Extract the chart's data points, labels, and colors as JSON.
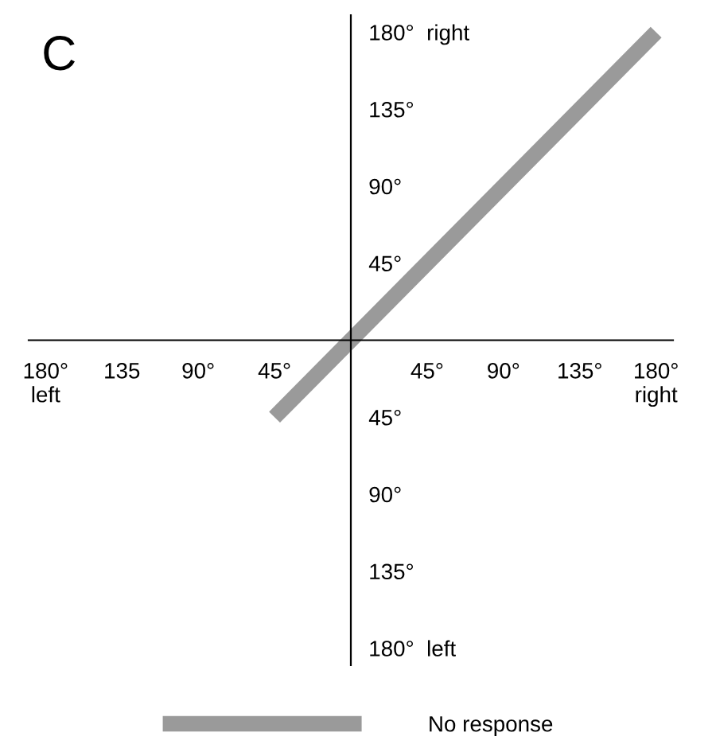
{
  "chart_data": {
    "type": "line",
    "title": "C",
    "x": [
      -45,
      180
    ],
    "series": [
      {
        "name": "No response",
        "color": "#9a9a9a",
        "values": [
          -45,
          180
        ]
      }
    ],
    "xlim": [
      -190,
      190
    ],
    "ylim": [
      -190,
      190
    ],
    "xticks": [
      {
        "value": -180,
        "label": "180°\nleft"
      },
      {
        "value": -135,
        "label": "135"
      },
      {
        "value": -90,
        "label": "90°"
      },
      {
        "value": -45,
        "label": "45°"
      },
      {
        "value": 45,
        "label": "45°"
      },
      {
        "value": 90,
        "label": "90°"
      },
      {
        "value": 135,
        "label": "135°"
      },
      {
        "value": 180,
        "label": "180°\nright"
      }
    ],
    "yticks": [
      {
        "value": -180,
        "label": "180°  left"
      },
      {
        "value": -135,
        "label": "135°"
      },
      {
        "value": -90,
        "label": "90°"
      },
      {
        "value": -45,
        "label": "45°"
      },
      {
        "value": 45,
        "label": "45°"
      },
      {
        "value": 90,
        "label": "90°"
      },
      {
        "value": 135,
        "label": "135°"
      },
      {
        "value": 180,
        "label": "180°  right"
      }
    ],
    "grid": false,
    "legend": "bottom",
    "line_style": "solid",
    "marker": "none"
  }
}
